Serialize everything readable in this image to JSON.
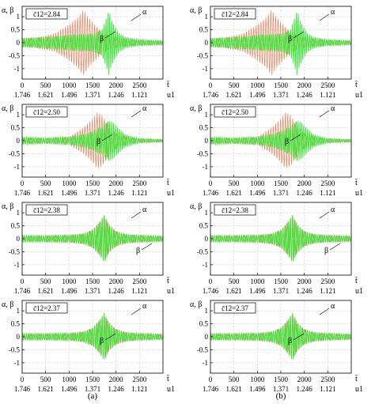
{
  "figure": {
    "panel_labels": [
      "(a)",
      "(b)"
    ]
  },
  "chart_data": [
    {
      "type": "line",
      "column": "(a)",
      "parameter_label": "c̄12=2.84",
      "ylabel": "α, β",
      "xlabel_top": "t̄",
      "xlabel_bottom": "u1",
      "xlim": [
        0,
        3000
      ],
      "ylim": [
        -1.4,
        1.4
      ],
      "x_ticks": [
        0,
        500,
        1000,
        1500,
        2000,
        2500
      ],
      "y_ticks": [
        1,
        0.5,
        0,
        -0.5,
        -1
      ],
      "u_ticks": [
        "1.746",
        "1.621",
        "1.496",
        "1.371",
        "1.246",
        "1.121"
      ],
      "series": [
        {
          "name": "α",
          "color": "#2ee82e",
          "envelope_x": [
            0,
            300,
            700,
            1100,
            1500,
            1700,
            1800,
            1850,
            1900,
            2050,
            2200,
            2500,
            3000
          ],
          "envelope_y": [
            0.18,
            0.2,
            0.25,
            0.32,
            0.35,
            0.5,
            1.0,
            1.3,
            0.9,
            0.4,
            0.22,
            0.12,
            0.08
          ]
        },
        {
          "name": "β",
          "color": "#e8744a",
          "envelope_x": [
            0,
            300,
            700,
            1000,
            1200,
            1300,
            1400,
            1550,
            1700,
            1850,
            2100,
            2500,
            3000
          ],
          "envelope_y": [
            0.15,
            0.2,
            0.35,
            0.7,
            1.0,
            1.3,
            1.0,
            0.7,
            0.45,
            0.25,
            0.15,
            0.1,
            0.07
          ]
        }
      ]
    },
    {
      "type": "line",
      "column": "(b)",
      "parameter_label": "c̄12=2.84",
      "ylabel": "α, β",
      "xlabel_top": "t̄",
      "xlabel_bottom": "u1",
      "xlim": [
        0,
        3000
      ],
      "ylim": [
        -1.4,
        1.4
      ],
      "x_ticks": [
        0,
        500,
        1000,
        1500,
        2000,
        2500
      ],
      "y_ticks": [
        1,
        0.5,
        0,
        -0.5,
        -1
      ],
      "u_ticks": [
        "1.746",
        "1.621",
        "1.496",
        "1.371",
        "1.246",
        "1.121"
      ],
      "series": [
        {
          "name": "α",
          "color": "#2ee82e",
          "envelope_x": [
            0,
            300,
            700,
            1100,
            1500,
            1700,
            1800,
            1850,
            1900,
            2050,
            2200,
            2500,
            3000
          ],
          "envelope_y": [
            0.18,
            0.2,
            0.25,
            0.32,
            0.35,
            0.5,
            1.0,
            1.3,
            0.9,
            0.4,
            0.22,
            0.12,
            0.08
          ]
        },
        {
          "name": "β",
          "color": "#e8744a",
          "envelope_x": [
            0,
            300,
            700,
            1000,
            1200,
            1300,
            1400,
            1550,
            1700,
            1850,
            2100,
            2500,
            3000
          ],
          "envelope_y": [
            0.15,
            0.2,
            0.35,
            0.7,
            1.0,
            1.3,
            1.0,
            0.7,
            0.45,
            0.25,
            0.15,
            0.1,
            0.07
          ]
        }
      ]
    },
    {
      "type": "line",
      "column": "(a)",
      "parameter_label": "c̄12=2.50",
      "ylabel": "α, β",
      "xlabel_top": "t̄",
      "xlabel_bottom": "u1",
      "xlim": [
        0,
        3000
      ],
      "ylim": [
        -1.4,
        1.4
      ],
      "x_ticks": [
        0,
        500,
        1000,
        1500,
        2000,
        2500
      ],
      "y_ticks": [
        1,
        0.5,
        0,
        -0.5,
        -1
      ],
      "u_ticks": [
        "1.746",
        "1.621",
        "1.496",
        "1.371",
        "1.246",
        "1.121"
      ],
      "series": [
        {
          "name": "α",
          "color": "#2ee82e",
          "envelope_x": [
            0,
            500,
            1000,
            1400,
            1700,
            1850,
            1950,
            2050,
            2200,
            2500,
            3000
          ],
          "envelope_y": [
            0.15,
            0.1,
            0.15,
            0.3,
            0.55,
            0.8,
            0.7,
            0.5,
            0.25,
            0.08,
            0.05
          ]
        },
        {
          "name": "β",
          "color": "#e8744a",
          "envelope_x": [
            0,
            500,
            1000,
            1300,
            1500,
            1600,
            1700,
            1850,
            2000,
            2300,
            3000
          ],
          "envelope_y": [
            0.12,
            0.1,
            0.15,
            0.5,
            0.85,
            1.1,
            1.0,
            0.6,
            0.3,
            0.1,
            0.05
          ]
        }
      ]
    },
    {
      "type": "line",
      "column": "(b)",
      "parameter_label": "c̄12=2.50",
      "ylabel": "α, β",
      "xlabel_top": "t̄",
      "xlabel_bottom": "u1",
      "xlim": [
        0,
        3000
      ],
      "ylim": [
        -1.4,
        1.4
      ],
      "x_ticks": [
        0,
        500,
        1000,
        1500,
        2000,
        2500
      ],
      "y_ticks": [
        1,
        0.5,
        0,
        -0.5,
        -1
      ],
      "u_ticks": [
        "1.746",
        "1.621",
        "1.496",
        "1.371",
        "1.246",
        "1.121"
      ],
      "series": [
        {
          "name": "α",
          "color": "#2ee82e",
          "envelope_x": [
            0,
            500,
            1000,
            1400,
            1700,
            1850,
            1950,
            2050,
            2200,
            2500,
            3000
          ],
          "envelope_y": [
            0.15,
            0.1,
            0.15,
            0.3,
            0.55,
            0.8,
            0.7,
            0.5,
            0.25,
            0.08,
            0.05
          ]
        },
        {
          "name": "β",
          "color": "#e8744a",
          "envelope_x": [
            0,
            500,
            1000,
            1300,
            1500,
            1600,
            1700,
            1850,
            2000,
            2300,
            3000
          ],
          "envelope_y": [
            0.12,
            0.1,
            0.15,
            0.5,
            0.85,
            1.1,
            1.0,
            0.6,
            0.3,
            0.1,
            0.05
          ]
        }
      ]
    },
    {
      "type": "line",
      "column": "(a)",
      "parameter_label": "c̄12=2.38",
      "ylabel": "α, β",
      "xlabel_top": "t̄",
      "xlabel_bottom": "u1",
      "xlim": [
        0,
        3000
      ],
      "ylim": [
        -1.4,
        1.4
      ],
      "x_ticks": [
        0,
        500,
        1000,
        1500,
        2000,
        2500
      ],
      "y_ticks": [
        1,
        0.5,
        0,
        -0.5,
        -1
      ],
      "u_ticks": [
        "1.746",
        "1.621",
        "1.496",
        "1.371",
        "1.246",
        "1.121"
      ],
      "series": [
        {
          "name": "α",
          "color": "#2ee82e",
          "envelope_x": [
            0,
            500,
            1000,
            1300,
            1500,
            1650,
            1750,
            1850,
            2000,
            2200,
            2500,
            3000
          ],
          "envelope_y": [
            0.12,
            0.12,
            0.14,
            0.2,
            0.35,
            0.65,
            0.95,
            0.55,
            0.3,
            0.18,
            0.13,
            0.1
          ]
        },
        {
          "name": "β",
          "color": "#e8744a",
          "envelope_x": [
            0,
            500,
            1000,
            1300,
            1500,
            1650,
            1750,
            1850,
            2000,
            2200,
            2500,
            3000
          ],
          "envelope_y": [
            0.12,
            0.12,
            0.14,
            0.2,
            0.35,
            0.65,
            0.9,
            0.55,
            0.3,
            0.18,
            0.13,
            0.1
          ]
        }
      ]
    },
    {
      "type": "line",
      "column": "(b)",
      "parameter_label": "c̄12=2.38",
      "ylabel": "α, β",
      "xlabel_top": "t̄",
      "xlabel_bottom": "u1",
      "xlim": [
        0,
        3000
      ],
      "ylim": [
        -1.4,
        1.4
      ],
      "x_ticks": [
        0,
        500,
        1000,
        1500,
        2000,
        2500
      ],
      "y_ticks": [
        1,
        0.5,
        0,
        -0.5,
        -1
      ],
      "u_ticks": [
        "1.746",
        "1.621",
        "1.496",
        "1.371",
        "1.246",
        "1.121"
      ],
      "series": [
        {
          "name": "α",
          "color": "#2ee82e",
          "envelope_x": [
            0,
            500,
            1000,
            1300,
            1500,
            1650,
            1750,
            1850,
            2000,
            2200,
            2500,
            3000
          ],
          "envelope_y": [
            0.12,
            0.12,
            0.14,
            0.2,
            0.35,
            0.65,
            0.95,
            0.55,
            0.3,
            0.18,
            0.13,
            0.1
          ]
        },
        {
          "name": "β",
          "color": "#e8744a",
          "envelope_x": [
            0,
            500,
            1000,
            1300,
            1500,
            1650,
            1750,
            1850,
            2000,
            2200,
            2500,
            3000
          ],
          "envelope_y": [
            0.12,
            0.12,
            0.14,
            0.2,
            0.35,
            0.65,
            0.9,
            0.55,
            0.3,
            0.18,
            0.13,
            0.1
          ]
        }
      ]
    },
    {
      "type": "line",
      "column": "(a)",
      "parameter_label": "c̄12=2.37",
      "ylabel": "α, β",
      "xlabel_top": "t̄",
      "xlabel_bottom": "u1",
      "xlim": [
        0,
        3000
      ],
      "ylim": [
        -1.4,
        1.4
      ],
      "x_ticks": [
        0,
        500,
        1000,
        1500,
        2000,
        2500
      ],
      "y_ticks": [
        1,
        0.5,
        0,
        -0.5,
        -1
      ],
      "u_ticks": [
        "1.746",
        "1.621",
        "1.496",
        "1.371",
        "1.246",
        "1.121"
      ],
      "series": [
        {
          "name": "α",
          "color": "#2ee82e",
          "envelope_x": [
            0,
            500,
            1000,
            1300,
            1500,
            1650,
            1750,
            1850,
            2000,
            2200,
            2500,
            3000
          ],
          "envelope_y": [
            0.12,
            0.12,
            0.14,
            0.2,
            0.35,
            0.65,
            0.95,
            0.55,
            0.3,
            0.18,
            0.13,
            0.1
          ]
        },
        {
          "name": "β",
          "color": "#e8744a",
          "envelope_x": [
            0,
            500,
            1000,
            1300,
            1500,
            1650,
            1750,
            1850,
            2000,
            2200,
            2500,
            3000
          ],
          "envelope_y": [
            0.12,
            0.12,
            0.14,
            0.2,
            0.35,
            0.65,
            0.9,
            0.55,
            0.3,
            0.18,
            0.13,
            0.1
          ]
        }
      ]
    },
    {
      "type": "line",
      "column": "(b)",
      "parameter_label": "c̄12=2.37",
      "ylabel": "α, β",
      "xlabel_top": "t̄",
      "xlabel_bottom": "u1",
      "xlim": [
        0,
        3000
      ],
      "ylim": [
        -1.4,
        1.4
      ],
      "x_ticks": [
        0,
        500,
        1000,
        1500,
        2000,
        2500
      ],
      "y_ticks": [
        1,
        0.5,
        0,
        -0.5,
        -1
      ],
      "u_ticks": [
        "1.746",
        "1.621",
        "1.496",
        "1.371",
        "1.246",
        "1.121"
      ],
      "series": [
        {
          "name": "α",
          "color": "#2ee82e",
          "envelope_x": [
            0,
            500,
            1000,
            1300,
            1500,
            1650,
            1750,
            1850,
            2000,
            2200,
            2500,
            3000
          ],
          "envelope_y": [
            0.12,
            0.12,
            0.14,
            0.2,
            0.35,
            0.65,
            0.95,
            0.55,
            0.3,
            0.18,
            0.13,
            0.1
          ]
        },
        {
          "name": "β",
          "color": "#e8744a",
          "envelope_x": [
            0,
            500,
            1000,
            1300,
            1500,
            1650,
            1750,
            1850,
            2000,
            2200,
            2500,
            3000
          ],
          "envelope_y": [
            0.12,
            0.12,
            0.14,
            0.2,
            0.35,
            0.65,
            0.9,
            0.55,
            0.3,
            0.18,
            0.13,
            0.1
          ]
        }
      ]
    }
  ]
}
